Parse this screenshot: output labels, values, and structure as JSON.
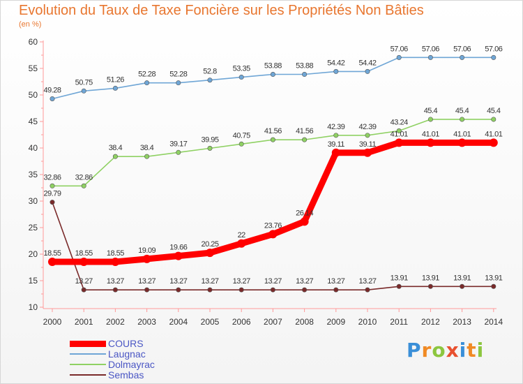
{
  "header": {
    "title": "Evolution du Taux de Taxe Foncière sur les Propriétés Non Bâties",
    "unit": "(en %)"
  },
  "logo": {
    "text": "Proxiti",
    "letters": [
      {
        "char": "P",
        "color": "#3a8fd8"
      },
      {
        "char": "r",
        "color": "#f08a24"
      },
      {
        "char": "o",
        "color": "#8cc63f"
      },
      {
        "char": "x",
        "color": "#e8502f"
      },
      {
        "char": "i",
        "color": "#3a8fd8"
      },
      {
        "char": "t",
        "color": "#f08a24"
      },
      {
        "char": "i",
        "color": "#8cc63f"
      }
    ]
  },
  "chart_data": {
    "type": "line",
    "title": "Evolution du Taux de Taxe Foncière sur les Propriétés Non Bâties",
    "ylabel": "(en %)",
    "xlabel": "",
    "x": [
      "2000",
      "2001",
      "2002",
      "2003",
      "2004",
      "2005",
      "2006",
      "2007",
      "2008",
      "2009",
      "2010",
      "2011",
      "2012",
      "2013",
      "2014"
    ],
    "ylim": [
      10,
      60
    ],
    "yticks": [
      10,
      15,
      20,
      25,
      30,
      35,
      40,
      45,
      50,
      55,
      60
    ],
    "grid": false,
    "legend_position": "bottom-left",
    "series": [
      {
        "name": "COURS",
        "color": "#ff0000",
        "values": [
          18.55,
          18.55,
          18.55,
          19.09,
          19.66,
          20.25,
          22,
          23.76,
          26.14,
          39.11,
          39.11,
          41.01,
          41.01,
          41.01,
          41.01
        ],
        "labels": [
          "18.55",
          "18.55",
          "18.55",
          "19.09",
          "19.66",
          "20.25",
          "22",
          "23.76",
          "26.14",
          "39.11",
          "39.11",
          "41.01",
          "41.01",
          "41.01",
          "41.01"
        ]
      },
      {
        "name": "Laugnac",
        "color": "#6fa6d6",
        "values": [
          49.28,
          50.75,
          51.26,
          52.28,
          52.28,
          52.8,
          53.35,
          53.88,
          53.88,
          54.42,
          54.42,
          57.06,
          57.06,
          57.06,
          57.06
        ],
        "labels": [
          "49.28",
          "50.75",
          "51.26",
          "52.28",
          "52.28",
          "52.8",
          "53.35",
          "53.88",
          "53.88",
          "54.42",
          "54.42",
          "57.06",
          "57.06",
          "57.06",
          "57.06"
        ]
      },
      {
        "name": "Dolmayrac",
        "color": "#8fd163",
        "values": [
          32.86,
          32.86,
          38.4,
          38.4,
          39.17,
          39.95,
          40.75,
          41.56,
          41.56,
          42.39,
          42.39,
          43.24,
          45.4,
          45.4,
          45.4
        ],
        "labels": [
          "32.86",
          "32.86",
          "38.4",
          "38.4",
          "39.17",
          "39.95",
          "40.75",
          "41.56",
          "41.56",
          "42.39",
          "42.39",
          "43.24",
          "45.4",
          "45.4",
          "45.4"
        ]
      },
      {
        "name": "Sembas",
        "color": "#7a2a2a",
        "values": [
          29.79,
          13.27,
          13.27,
          13.27,
          13.27,
          13.27,
          13.27,
          13.27,
          13.27,
          13.27,
          13.27,
          13.91,
          13.91,
          13.91,
          13.91
        ],
        "labels": [
          "29.79",
          "13.27",
          "13.27",
          "13.27",
          "13.27",
          "13.27",
          "13.27",
          "13.27",
          "13.27",
          "13.27",
          "13.27",
          "13.91",
          "13.91",
          "13.91",
          "13.91"
        ]
      }
    ]
  }
}
